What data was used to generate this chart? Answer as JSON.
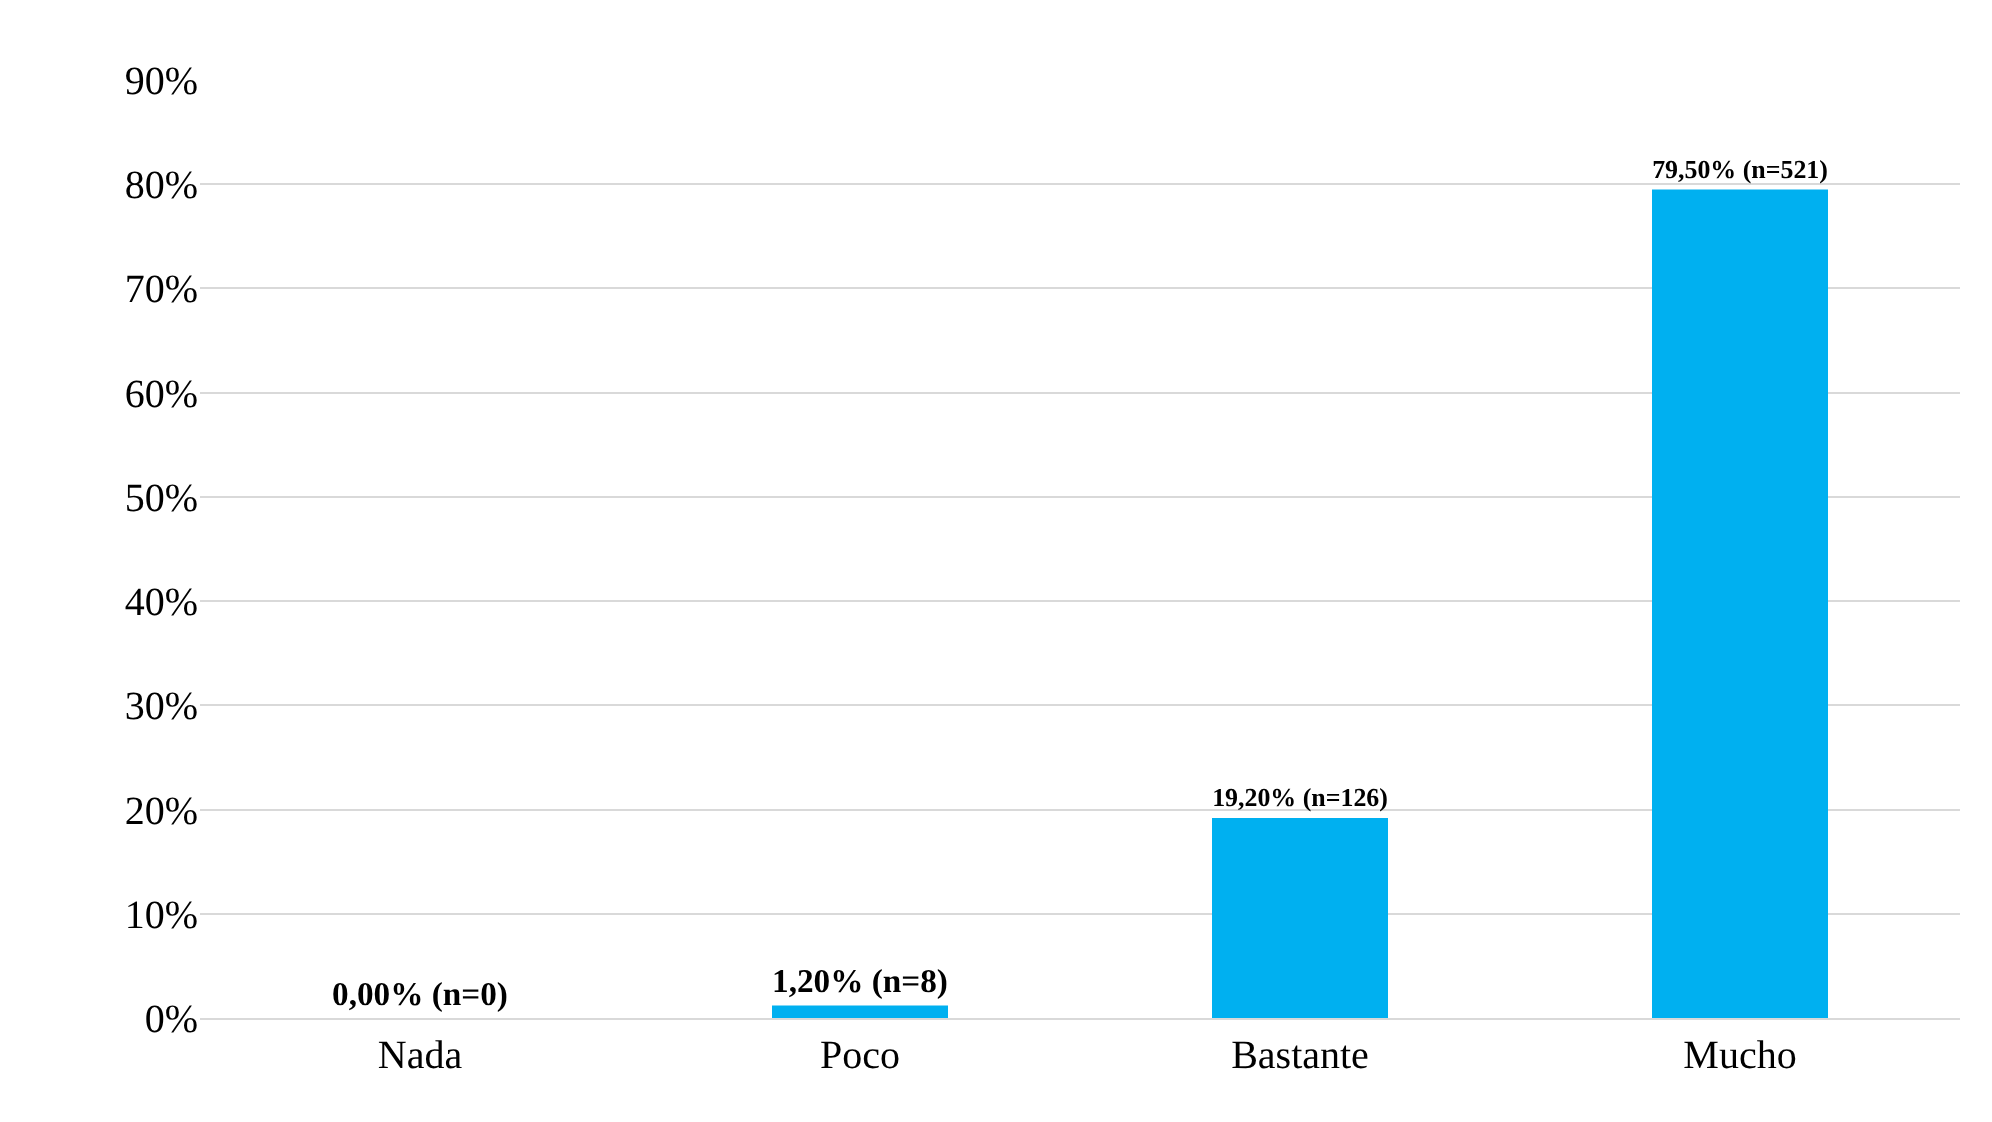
{
  "chart_data": {
    "type": "bar",
    "categories": [
      "Nada",
      "Poco",
      "Bastante",
      "Mucho"
    ],
    "values": [
      0,
      1.2,
      19.2,
      79.5
    ],
    "color": "#00b0f0",
    "value_labels": [
      "0,00% (n=0)",
      "1,20% (n=8)",
      "19,20% (n=126)",
      "79,50% (n=521)"
    ],
    "ylim": [
      0,
      90
    ],
    "yticks": [
      {
        "value": 0,
        "label": "0%"
      },
      {
        "value": 10,
        "label": "10%"
      },
      {
        "value": 20,
        "label": "20%"
      },
      {
        "value": 30,
        "label": "30%"
      },
      {
        "value": 40,
        "label": "40%"
      },
      {
        "value": 50,
        "label": "50%"
      },
      {
        "value": 60,
        "label": "60%"
      },
      {
        "value": 70,
        "label": "70%"
      },
      {
        "value": 80,
        "label": "80%"
      },
      {
        "value": 90,
        "label": "90%"
      }
    ],
    "grid": "y",
    "legend": false
  }
}
